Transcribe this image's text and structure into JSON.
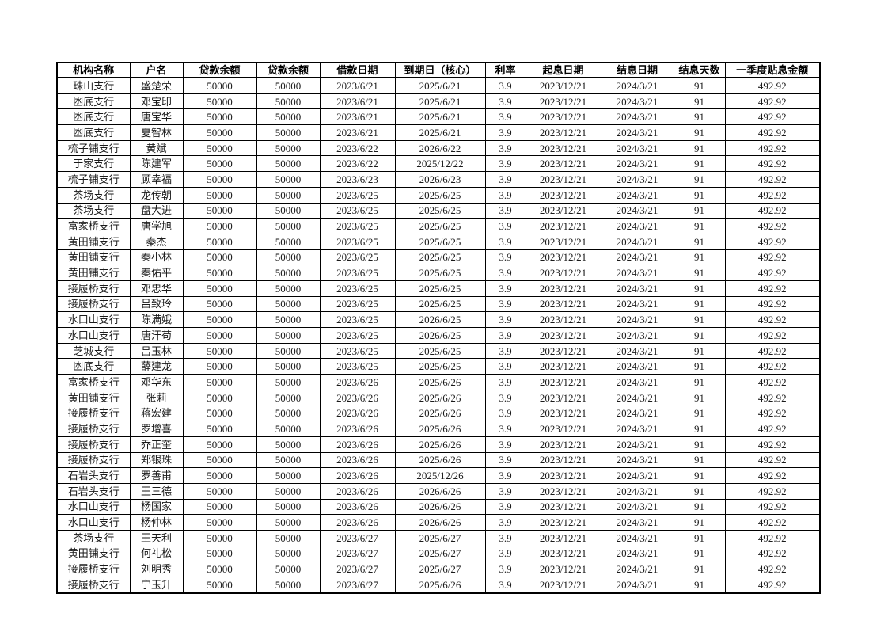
{
  "table": {
    "headers": [
      "机构名称",
      "户名",
      "贷款余额",
      "贷款余额",
      "借款日期",
      "到期日（核心）",
      "利率",
      "起息日期",
      "结息日期",
      "结息天数",
      "一季度贴息金额"
    ],
    "rows": [
      [
        "珠山支行",
        "盛楚荣",
        "50000",
        "50000",
        "2023/6/21",
        "2025/6/21",
        "3.9",
        "2023/12/21",
        "2024/3/21",
        "91",
        "492.92"
      ],
      [
        "凼底支行",
        "邓宝印",
        "50000",
        "50000",
        "2023/6/21",
        "2025/6/21",
        "3.9",
        "2023/12/21",
        "2024/3/21",
        "91",
        "492.92"
      ],
      [
        "凼底支行",
        "唐宝华",
        "50000",
        "50000",
        "2023/6/21",
        "2025/6/21",
        "3.9",
        "2023/12/21",
        "2024/3/21",
        "91",
        "492.92"
      ],
      [
        "凼底支行",
        "夏智林",
        "50000",
        "50000",
        "2023/6/21",
        "2025/6/21",
        "3.9",
        "2023/12/21",
        "2024/3/21",
        "91",
        "492.92"
      ],
      [
        "梳子铺支行",
        "黄斌",
        "50000",
        "50000",
        "2023/6/22",
        "2026/6/22",
        "3.9",
        "2023/12/21",
        "2024/3/21",
        "91",
        "492.92"
      ],
      [
        "于家支行",
        "陈建军",
        "50000",
        "50000",
        "2023/6/22",
        "2025/12/22",
        "3.9",
        "2023/12/21",
        "2024/3/21",
        "91",
        "492.92"
      ],
      [
        "梳子铺支行",
        "顾幸福",
        "50000",
        "50000",
        "2023/6/23",
        "2026/6/23",
        "3.9",
        "2023/12/21",
        "2024/3/21",
        "91",
        "492.92"
      ],
      [
        "茶场支行",
        "龙传朝",
        "50000",
        "50000",
        "2023/6/25",
        "2025/6/25",
        "3.9",
        "2023/12/21",
        "2024/3/21",
        "91",
        "492.92"
      ],
      [
        "茶场支行",
        "盘大进",
        "50000",
        "50000",
        "2023/6/25",
        "2025/6/25",
        "3.9",
        "2023/12/21",
        "2024/3/21",
        "91",
        "492.92"
      ],
      [
        "富家桥支行",
        "唐学旭",
        "50000",
        "50000",
        "2023/6/25",
        "2025/6/25",
        "3.9",
        "2023/12/21",
        "2024/3/21",
        "91",
        "492.92"
      ],
      [
        "黄田铺支行",
        "秦杰",
        "50000",
        "50000",
        "2023/6/25",
        "2025/6/25",
        "3.9",
        "2023/12/21",
        "2024/3/21",
        "91",
        "492.92"
      ],
      [
        "黄田铺支行",
        "秦小林",
        "50000",
        "50000",
        "2023/6/25",
        "2025/6/25",
        "3.9",
        "2023/12/21",
        "2024/3/21",
        "91",
        "492.92"
      ],
      [
        "黄田铺支行",
        "秦佑平",
        "50000",
        "50000",
        "2023/6/25",
        "2025/6/25",
        "3.9",
        "2023/12/21",
        "2024/3/21",
        "91",
        "492.92"
      ],
      [
        "接履桥支行",
        "邓忠华",
        "50000",
        "50000",
        "2023/6/25",
        "2025/6/25",
        "3.9",
        "2023/12/21",
        "2024/3/21",
        "91",
        "492.92"
      ],
      [
        "接履桥支行",
        "吕致玲",
        "50000",
        "50000",
        "2023/6/25",
        "2025/6/25",
        "3.9",
        "2023/12/21",
        "2024/3/21",
        "91",
        "492.92"
      ],
      [
        "水口山支行",
        "陈满娥",
        "50000",
        "50000",
        "2023/6/25",
        "2026/6/25",
        "3.9",
        "2023/12/21",
        "2024/3/21",
        "91",
        "492.92"
      ],
      [
        "水口山支行",
        "唐汗苟",
        "50000",
        "50000",
        "2023/6/25",
        "2026/6/25",
        "3.9",
        "2023/12/21",
        "2024/3/21",
        "91",
        "492.92"
      ],
      [
        "芝城支行",
        "吕玉林",
        "50000",
        "50000",
        "2023/6/25",
        "2025/6/25",
        "3.9",
        "2023/12/21",
        "2024/3/21",
        "91",
        "492.92"
      ],
      [
        "凼底支行",
        "薛建龙",
        "50000",
        "50000",
        "2023/6/25",
        "2025/6/25",
        "3.9",
        "2023/12/21",
        "2024/3/21",
        "91",
        "492.92"
      ],
      [
        "富家桥支行",
        "邓华东",
        "50000",
        "50000",
        "2023/6/26",
        "2025/6/26",
        "3.9",
        "2023/12/21",
        "2024/3/21",
        "91",
        "492.92"
      ],
      [
        "黄田铺支行",
        "张莉",
        "50000",
        "50000",
        "2023/6/26",
        "2025/6/26",
        "3.9",
        "2023/12/21",
        "2024/3/21",
        "91",
        "492.92"
      ],
      [
        "接履桥支行",
        "蒋宏建",
        "50000",
        "50000",
        "2023/6/26",
        "2025/6/26",
        "3.9",
        "2023/12/21",
        "2024/3/21",
        "91",
        "492.92"
      ],
      [
        "接履桥支行",
        "罗增喜",
        "50000",
        "50000",
        "2023/6/26",
        "2025/6/26",
        "3.9",
        "2023/12/21",
        "2024/3/21",
        "91",
        "492.92"
      ],
      [
        "接履桥支行",
        "乔正奎",
        "50000",
        "50000",
        "2023/6/26",
        "2025/6/26",
        "3.9",
        "2023/12/21",
        "2024/3/21",
        "91",
        "492.92"
      ],
      [
        "接履桥支行",
        "郑银珠",
        "50000",
        "50000",
        "2023/6/26",
        "2025/6/26",
        "3.9",
        "2023/12/21",
        "2024/3/21",
        "91",
        "492.92"
      ],
      [
        "石岩头支行",
        "罗善甫",
        "50000",
        "50000",
        "2023/6/26",
        "2025/12/26",
        "3.9",
        "2023/12/21",
        "2024/3/21",
        "91",
        "492.92"
      ],
      [
        "石岩头支行",
        "王三德",
        "50000",
        "50000",
        "2023/6/26",
        "2026/6/26",
        "3.9",
        "2023/12/21",
        "2024/3/21",
        "91",
        "492.92"
      ],
      [
        "水口山支行",
        "杨国家",
        "50000",
        "50000",
        "2023/6/26",
        "2026/6/26",
        "3.9",
        "2023/12/21",
        "2024/3/21",
        "91",
        "492.92"
      ],
      [
        "水口山支行",
        "杨仲林",
        "50000",
        "50000",
        "2023/6/26",
        "2026/6/26",
        "3.9",
        "2023/12/21",
        "2024/3/21",
        "91",
        "492.92"
      ],
      [
        "茶场支行",
        "王天利",
        "50000",
        "50000",
        "2023/6/27",
        "2025/6/27",
        "3.9",
        "2023/12/21",
        "2024/3/21",
        "91",
        "492.92"
      ],
      [
        "黄田铺支行",
        "何礼松",
        "50000",
        "50000",
        "2023/6/27",
        "2025/6/27",
        "3.9",
        "2023/12/21",
        "2024/3/21",
        "91",
        "492.92"
      ],
      [
        "接履桥支行",
        "刘明秀",
        "50000",
        "50000",
        "2023/6/27",
        "2025/6/27",
        "3.9",
        "2023/12/21",
        "2024/3/21",
        "91",
        "492.92"
      ],
      [
        "接履桥支行",
        "宁玉升",
        "50000",
        "50000",
        "2023/6/27",
        "2025/6/26",
        "3.9",
        "2023/12/21",
        "2024/3/21",
        "91",
        "492.92"
      ]
    ]
  }
}
